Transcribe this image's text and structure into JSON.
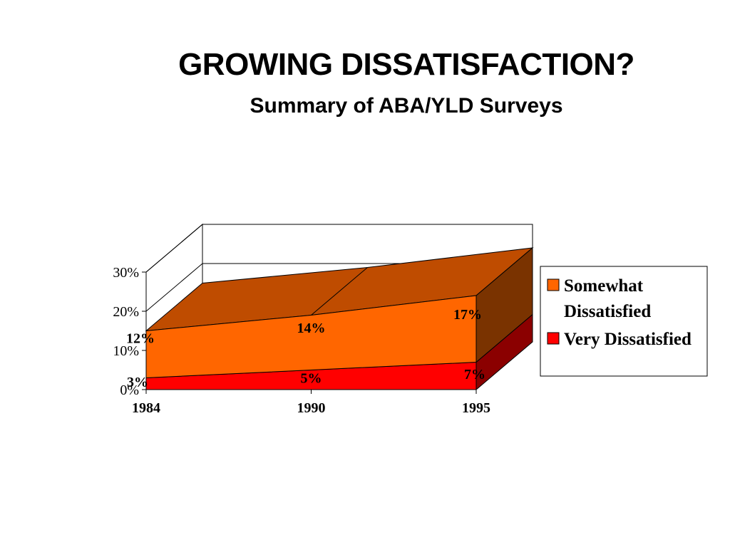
{
  "slide": {
    "title": "GROWING DISSATISFACTION?",
    "subtitle": "Summary of ABA/YLD Surveys"
  },
  "colors": {
    "somewhat_front": "#ff6600",
    "somewhat_top": "#bf4c00",
    "somewhat_side": "#7a3300",
    "very_front": "#ff0000",
    "very_side": "#8b0000"
  },
  "chart_data": {
    "type": "area",
    "categories": [
      "1984",
      "1990",
      "1995"
    ],
    "series": [
      {
        "name": "Very Dissatisfied",
        "values": [
          3,
          5,
          7
        ],
        "labels": [
          "3%",
          "5%",
          "7%"
        ]
      },
      {
        "name": "Somewhat Dissatisfied",
        "values": [
          12,
          14,
          17
        ],
        "labels": [
          "12%",
          "14%",
          "17%"
        ]
      }
    ],
    "stacked": true,
    "three_d": true,
    "y_ticks": [
      "0%",
      "10%",
      "20%",
      "30%"
    ],
    "ylim": [
      0,
      30
    ],
    "legend": {
      "position": "right",
      "entries": [
        {
          "line1": "Somewhat",
          "line2": "Dissatisfied"
        },
        {
          "line1": "Very Dissatisfied",
          "line2": ""
        }
      ]
    }
  }
}
